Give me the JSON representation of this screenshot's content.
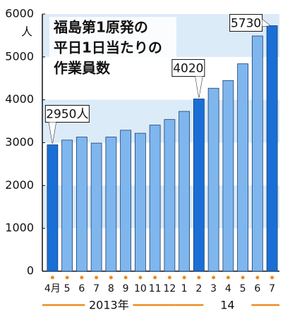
{
  "chart_data": {
    "type": "bar",
    "title": [
      "福島第1原発の",
      "平日1日当たりの",
      "作業員数"
    ],
    "y_unit": "人",
    "categories": [
      "4月",
      "5",
      "6",
      "7",
      "8",
      "9",
      "10",
      "11",
      "12",
      "1",
      "2",
      "3",
      "4",
      "5",
      "6",
      "7"
    ],
    "values": [
      2950,
      3060,
      3130,
      2990,
      3130,
      3290,
      3220,
      3410,
      3540,
      3730,
      4020,
      4270,
      4450,
      4840,
      5490,
      5730
    ],
    "value_labels": [
      "2950人",
      null,
      null,
      null,
      null,
      null,
      null,
      null,
      null,
      null,
      "4020",
      null,
      null,
      null,
      null,
      "5730"
    ],
    "colors": [
      "#1a6fd6",
      "#7fb6ee",
      "#7fb6ee",
      "#7fb6ee",
      "#7fb6ee",
      "#7fb6ee",
      "#7fb6ee",
      "#7fb6ee",
      "#7fb6ee",
      "#7fb6ee",
      "#1a6fd6",
      "#7fb6ee",
      "#7fb6ee",
      "#7fb6ee",
      "#7fb6ee",
      "#1a6fd6"
    ],
    "x_groups": [
      {
        "label": "2013年",
        "start": 0,
        "end": 8
      },
      {
        "label": "14",
        "start": 9,
        "end": 15
      }
    ],
    "ylim": [
      0,
      6000
    ],
    "yticks": [
      0,
      1000,
      2000,
      3000,
      4000,
      5000,
      6000
    ],
    "band_color": "#dcebf8",
    "accent_color": "#f08a1c"
  }
}
